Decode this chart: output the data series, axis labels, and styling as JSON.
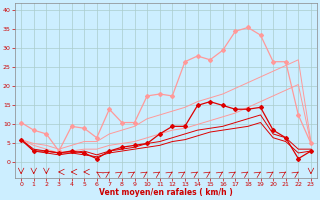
{
  "x": [
    0,
    1,
    2,
    3,
    4,
    5,
    6,
    7,
    8,
    9,
    10,
    11,
    12,
    13,
    14,
    15,
    16,
    17,
    18,
    19,
    20,
    21,
    22,
    23
  ],
  "series": [
    {
      "color": "#ff9999",
      "lw": 0.9,
      "marker": "D",
      "ms": 2.0,
      "values": [
        10.5,
        8.5,
        7.5,
        3.0,
        9.5,
        9.0,
        6.5,
        14.0,
        10.5,
        10.5,
        17.5,
        18.0,
        17.5,
        26.5,
        28.0,
        27.0,
        29.5,
        34.5,
        35.5,
        33.5,
        26.5,
        26.5,
        12.5,
        5.0
      ]
    },
    {
      "color": "#ff9999",
      "lw": 0.7,
      "marker": null,
      "ms": 0,
      "values": [
        6.0,
        5.0,
        4.5,
        3.5,
        4.5,
        5.5,
        5.5,
        7.5,
        8.5,
        9.5,
        11.5,
        12.5,
        13.5,
        14.5,
        16.0,
        17.0,
        18.0,
        19.5,
        21.0,
        22.5,
        24.0,
        25.5,
        27.0,
        5.5
      ]
    },
    {
      "color": "#ff9999",
      "lw": 0.7,
      "marker": null,
      "ms": 0,
      "values": [
        6.0,
        4.5,
        3.5,
        2.5,
        3.0,
        3.5,
        3.5,
        4.5,
        5.0,
        5.5,
        6.5,
        7.5,
        8.5,
        9.0,
        10.0,
        11.0,
        12.0,
        13.0,
        14.5,
        16.0,
        17.5,
        19.0,
        20.5,
        5.0
      ]
    },
    {
      "color": "#dd0000",
      "lw": 0.9,
      "marker": "D",
      "ms": 2.0,
      "values": [
        6.0,
        3.0,
        3.0,
        2.5,
        3.0,
        2.5,
        1.0,
        3.0,
        4.0,
        4.5,
        5.0,
        7.5,
        9.5,
        9.5,
        15.0,
        16.0,
        15.0,
        14.0,
        14.0,
        14.5,
        8.5,
        6.5,
        1.0,
        3.0
      ]
    },
    {
      "color": "#dd0000",
      "lw": 0.7,
      "marker": null,
      "ms": 0,
      "values": [
        6.0,
        3.5,
        3.0,
        2.5,
        2.5,
        3.0,
        2.0,
        3.0,
        3.5,
        4.0,
        5.0,
        5.5,
        6.5,
        7.5,
        8.5,
        9.0,
        9.5,
        10.5,
        11.5,
        12.5,
        7.5,
        6.5,
        3.5,
        3.5
      ]
    },
    {
      "color": "#dd0000",
      "lw": 0.7,
      "marker": null,
      "ms": 0,
      "values": [
        6.0,
        3.0,
        2.5,
        2.0,
        2.5,
        2.0,
        1.5,
        2.5,
        3.0,
        3.5,
        4.0,
        4.5,
        5.5,
        6.0,
        7.0,
        8.0,
        8.5,
        9.0,
        9.5,
        10.5,
        6.5,
        5.5,
        2.5,
        3.0
      ]
    }
  ],
  "xlim": [
    -0.5,
    23.5
  ],
  "ylim": [
    -4,
    42
  ],
  "yticks": [
    0,
    5,
    10,
    15,
    20,
    25,
    30,
    35,
    40
  ],
  "xticks": [
    0,
    1,
    2,
    3,
    4,
    5,
    6,
    7,
    8,
    9,
    10,
    11,
    12,
    13,
    14,
    15,
    16,
    17,
    18,
    19,
    20,
    21,
    22,
    23
  ],
  "xlabel": "Vent moyen/en rafales ( km/h )",
  "bg_color": "#cceeff",
  "grid_color": "#aacccc",
  "label_color": "#cc0000",
  "arrow_color": "#cc0000",
  "wind_dirs": [
    180,
    180,
    180,
    270,
    270,
    270,
    315,
    45,
    45,
    45,
    45,
    45,
    45,
    45,
    45,
    45,
    45,
    45,
    45,
    45,
    45,
    45,
    45,
    180
  ]
}
